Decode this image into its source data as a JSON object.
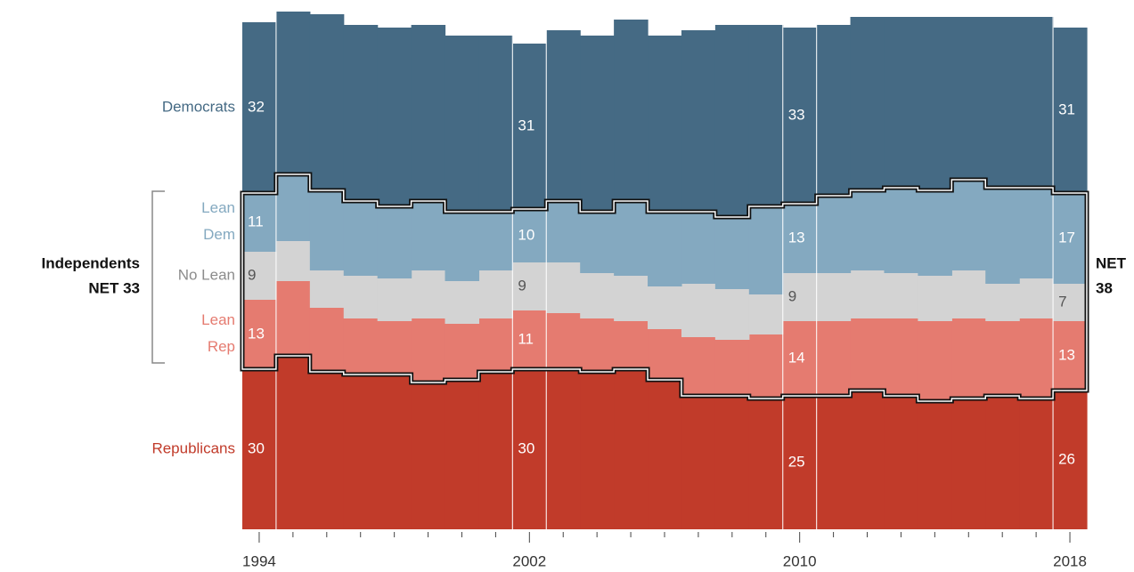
{
  "chart_data": {
    "type": "stacked-step-area",
    "categories": [
      "1994",
      null,
      null,
      null,
      null,
      null,
      null,
      null,
      "2002",
      null,
      null,
      null,
      null,
      null,
      null,
      null,
      "2010",
      null,
      null,
      null,
      null,
      null,
      null,
      null,
      "2018"
    ],
    "ylim": [
      0,
      100
    ],
    "series": [
      {
        "name": "Republicans",
        "color": "#c13b2a",
        "label_color": "#c13b2a",
        "values": [
          30,
          32.5,
          29.5,
          29,
          29,
          27.5,
          28,
          29.5,
          30,
          30,
          29.5,
          30,
          28,
          25,
          25,
          24.5,
          25,
          25,
          26,
          25,
          24,
          24.5,
          25,
          24.5,
          26
        ]
      },
      {
        "name": "Lean Rep",
        "color": "#e57b70",
        "label_color": "#e57b70",
        "values": [
          13,
          14,
          12,
          10.5,
          10,
          12,
          10.5,
          10,
          11,
          10.5,
          10,
          9,
          9.5,
          11,
          10.5,
          12,
          14,
          14,
          13.5,
          14.5,
          15,
          15,
          14,
          15,
          13
        ]
      },
      {
        "name": "No Lean",
        "color": "#d3d3d3",
        "label_color": "#8c8c8c",
        "values": [
          9,
          7.5,
          7,
          8,
          8,
          9,
          8,
          9,
          9,
          9.5,
          8.5,
          8.5,
          8,
          10,
          9.5,
          7.5,
          9,
          9,
          9,
          8.5,
          8.5,
          9,
          7,
          7.5,
          7
        ]
      },
      {
        "name": "Lean Dem",
        "color": "#84a9c0",
        "label_color": "#84a9c0",
        "values": [
          11,
          12.5,
          15,
          14,
          13.5,
          13,
          13,
          11,
          10,
          11.5,
          11.5,
          14,
          14,
          13.5,
          13.5,
          16.5,
          13,
          14.5,
          15,
          16,
          16,
          17,
          18,
          17,
          17
        ]
      },
      {
        "name": "Democrats",
        "color": "#456a84",
        "label_color": "#456a84",
        "values": [
          32,
          30.5,
          33,
          33,
          33.5,
          33,
          33,
          33,
          31,
          32,
          33,
          34,
          33,
          34,
          36,
          34,
          33,
          32,
          32.5,
          32,
          32.5,
          30.5,
          32,
          32,
          31
        ]
      }
    ],
    "annotations": {
      "left": [
        "Independents",
        "NET 33"
      ],
      "right": [
        "NET",
        "38"
      ]
    }
  }
}
